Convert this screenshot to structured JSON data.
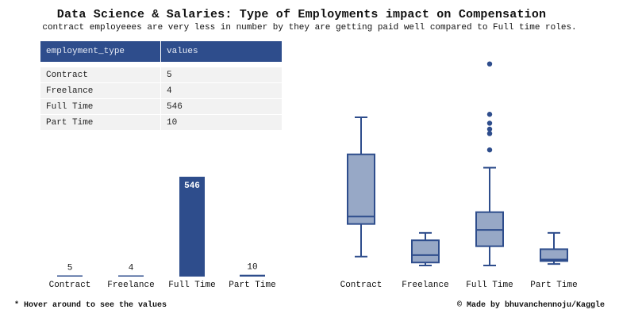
{
  "title": "Data Science & Salaries: Type of Employments impact on Compensation",
  "subtitle": "contract employeees are very less in number by they are getting paid well compared to Full time roles.",
  "footer": {
    "left": "* Hover around to see the values",
    "right": "© Made by bhuvanchennoju/Kaggle"
  },
  "colors": {
    "bar": "#2e4d8c",
    "box_fill": "#97a8c6",
    "box_stroke": "#2e4d8c",
    "table_header_bg": "#2e4d8c",
    "table_row_bg": "#f2f2f2"
  },
  "table": {
    "columns": [
      "employment_type",
      "values"
    ],
    "rows": [
      [
        "Contract",
        "5"
      ],
      [
        "Freelance",
        "4"
      ],
      [
        "Full Time",
        "546"
      ],
      [
        "Part Time",
        "10"
      ]
    ]
  },
  "chart_data": [
    {
      "type": "bar",
      "title": "",
      "categories": [
        "Contract",
        "Freelance",
        "Full Time",
        "Part Time"
      ],
      "values": [
        5,
        4,
        546,
        10
      ],
      "data_labels": [
        "5",
        "4",
        "546",
        "10"
      ],
      "xlabel": "",
      "ylabel": "",
      "ylim": [
        0,
        620
      ],
      "grid": false
    },
    {
      "type": "box",
      "title": "",
      "categories": [
        "Contract",
        "Freelance",
        "Full Time",
        "Part Time"
      ],
      "boxes": [
        {
          "whisker_low": 0.06,
          "q1": 0.28,
          "median": 0.33,
          "q3": 0.75,
          "whisker_high": 1.0,
          "outliers": []
        },
        {
          "whisker_low": 0.0,
          "q1": 0.02,
          "median": 0.07,
          "q3": 0.17,
          "whisker_high": 0.22,
          "outliers": []
        },
        {
          "whisker_low": 0.0,
          "q1": 0.13,
          "median": 0.24,
          "q3": 0.36,
          "whisker_high": 0.66,
          "outliers": [
            0.78,
            0.89,
            0.92,
            0.96,
            1.02,
            1.36
          ]
        },
        {
          "whisker_low": 0.01,
          "q1": 0.03,
          "median": 0.04,
          "q3": 0.11,
          "whisker_high": 0.22,
          "outliers": []
        }
      ],
      "xlabel": "",
      "ylabel": "",
      "ylim": [
        0,
        1.4
      ],
      "grid": false
    }
  ]
}
